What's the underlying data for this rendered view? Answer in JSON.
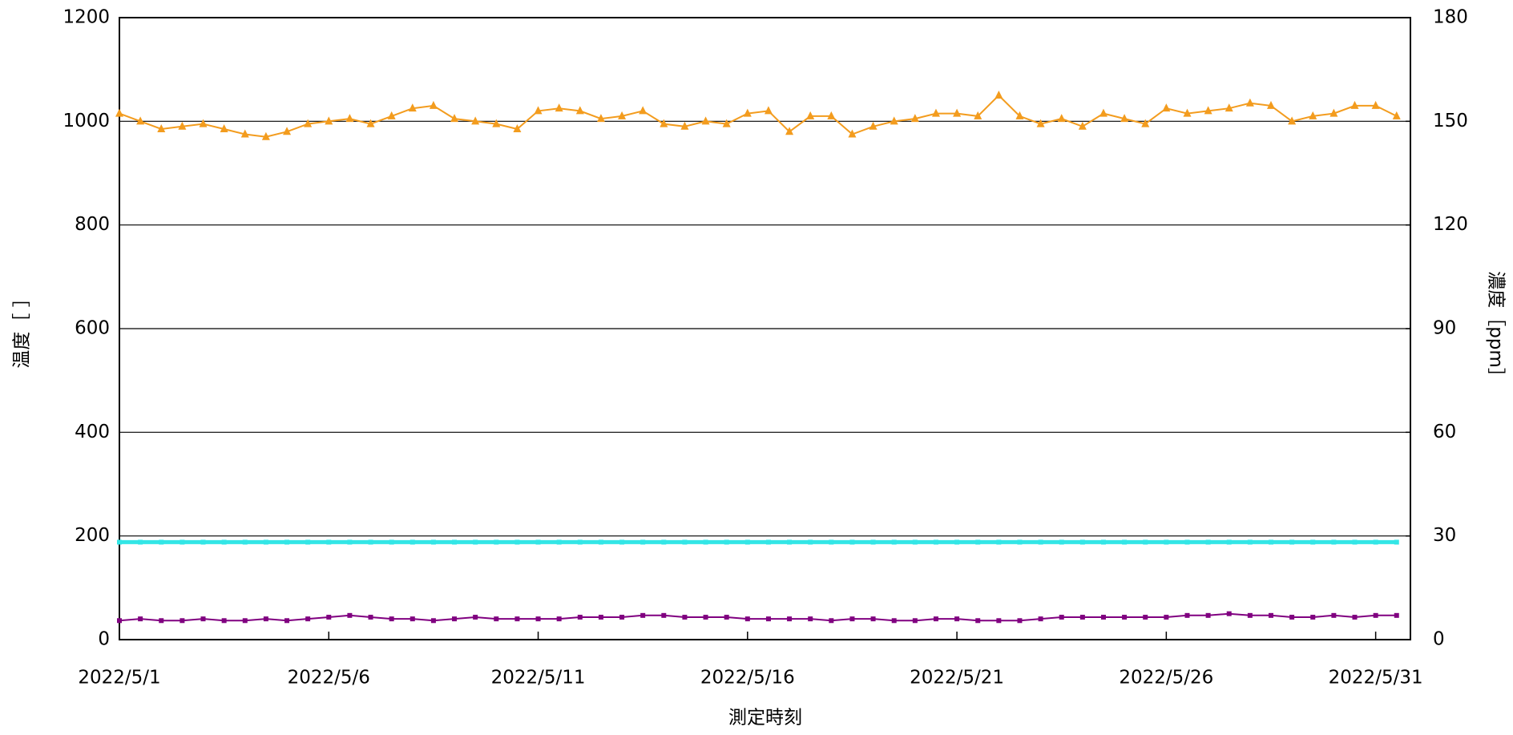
{
  "chart_data": {
    "type": "line",
    "xlabel": "測定時刻",
    "ylabel": "温度［ ］",
    "y2label": "濃度［ppm］",
    "x": [
      1,
      1.5,
      2,
      2.5,
      3,
      3.5,
      4,
      4.5,
      5,
      5.5,
      6,
      6.5,
      7,
      7.5,
      8,
      8.5,
      9,
      9.5,
      10,
      10.5,
      11,
      11.5,
      12,
      12.5,
      13,
      13.5,
      14,
      14.5,
      15,
      15.5,
      16,
      16.5,
      17,
      17.5,
      18,
      18.5,
      19,
      19.5,
      20,
      20.5,
      21,
      21.5,
      22,
      22.5,
      23,
      23.5,
      24,
      24.5,
      25,
      25.5,
      26,
      26.5,
      27,
      27.5,
      28,
      28.5,
      29,
      29.5,
      30,
      30.5,
      31,
      31.5
    ],
    "xlim": [
      1,
      31.83
    ],
    "xticks": [
      {
        "value": 1,
        "label": "2022/5/1"
      },
      {
        "value": 6,
        "label": "2022/5/6"
      },
      {
        "value": 11,
        "label": "2022/5/11"
      },
      {
        "value": 16,
        "label": "2022/5/16"
      },
      {
        "value": 21,
        "label": "2022/5/21"
      },
      {
        "value": 26,
        "label": "2022/5/26"
      },
      {
        "value": 31,
        "label": "2022/5/31"
      }
    ],
    "ylim": [
      0,
      1200
    ],
    "yticks": [
      0,
      200,
      400,
      600,
      800,
      1000,
      1200
    ],
    "y2lim": [
      0,
      180
    ],
    "y2ticks": [
      0,
      30,
      60,
      90,
      120,
      150,
      180
    ],
    "grid": true,
    "series": [
      {
        "color": "#f39c1e",
        "marker": "triangle",
        "values": [
          1015,
          1000,
          985,
          990,
          995,
          985,
          975,
          970,
          980,
          995,
          1000,
          1005,
          995,
          1010,
          1025,
          1030,
          1005,
          1000,
          995,
          985,
          1020,
          1025,
          1020,
          1005,
          1010,
          1020,
          995,
          990,
          1000,
          995,
          1015,
          1020,
          980,
          1010,
          1010,
          975,
          990,
          1000,
          1005,
          1015,
          1015,
          1010,
          1050,
          1010,
          995,
          1005,
          990,
          1015,
          1005,
          995,
          1025,
          1015,
          1020,
          1025,
          1035,
          1030,
          1000,
          1010,
          1015,
          1030,
          1030,
          1010
        ]
      },
      {
        "color": "#33e6e6",
        "marker": "square",
        "values": [
          188,
          188,
          188,
          188,
          188,
          188,
          188,
          188,
          188,
          188,
          188,
          188,
          188,
          188,
          188,
          188,
          188,
          188,
          188,
          188,
          188,
          188,
          188,
          188,
          188,
          188,
          188,
          188,
          188,
          188,
          188,
          188,
          188,
          188,
          188,
          188,
          188,
          188,
          188,
          188,
          188,
          188,
          188,
          188,
          188,
          188,
          188,
          188,
          188,
          188,
          188,
          188,
          188,
          188,
          188,
          188,
          188,
          188,
          188,
          188,
          188,
          188
        ]
      },
      {
        "color": "#800080",
        "marker": "square",
        "axis": "y2",
        "values": [
          5.5,
          6,
          5.5,
          5.5,
          6,
          5.5,
          5.5,
          6,
          5.5,
          6,
          6.5,
          7,
          6.5,
          6,
          6,
          5.5,
          6,
          6.5,
          6,
          6,
          6,
          6,
          6.5,
          6.5,
          6.5,
          7,
          7,
          6.5,
          6.5,
          6.5,
          6,
          6,
          6,
          6,
          5.5,
          6,
          6,
          5.5,
          5.5,
          6,
          6,
          5.5,
          5.5,
          5.5,
          6,
          6.5,
          6.5,
          6.5,
          6.5,
          6.5,
          6.5,
          7,
          7,
          7.5,
          7,
          7,
          6.5,
          6.5,
          7,
          6.5,
          7,
          7
        ]
      }
    ]
  }
}
